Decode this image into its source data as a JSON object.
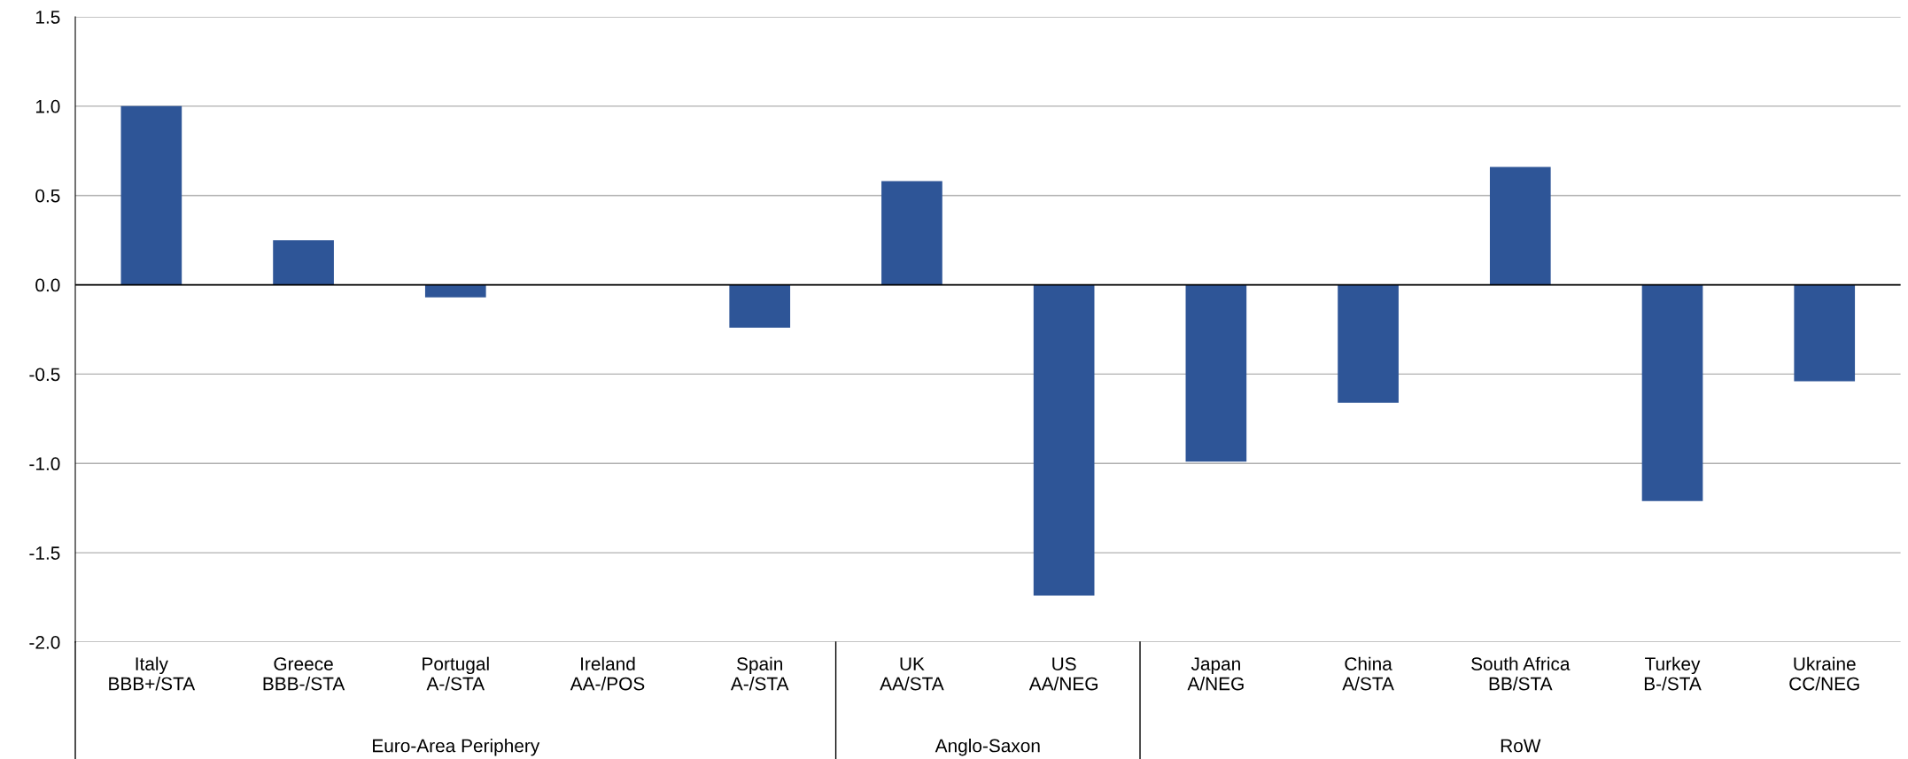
{
  "chart_data": {
    "type": "bar",
    "categories": [
      "Italy\nBBB+/STA",
      "Greece\nBBB-/STA",
      "Portugal\nA-/STA",
      "Ireland\nAA-/POS",
      "Spain\nA-/STA",
      "UK\nAA/STA",
      "US\nAA/NEG",
      "Japan\nA/NEG",
      "China\nA/STA",
      "South Africa\nBB/STA",
      "Turkey\nB-/STA",
      "Ukraine\nCC/NEG"
    ],
    "values": [
      1.0,
      0.25,
      -0.07,
      0.0,
      -0.24,
      0.58,
      -1.74,
      -0.99,
      -0.66,
      0.66,
      -1.21,
      -0.54
    ],
    "color": "#2e5597",
    "ylim": [
      -2.0,
      1.5
    ],
    "yticks": [
      {
        "value": -2,
        "label": "-2.0"
      },
      -1.5,
      {
        "value": -1,
        "label": "-1.0"
      },
      -0.5,
      {
        "value": 0,
        "label": "0.0"
      },
      0.5,
      {
        "value": 1,
        "label": "1.0"
      },
      1.5
    ],
    "grid": "y",
    "annotations": [
      "Euro-Area Periphery",
      "Anglo-Saxon",
      "RoW"
    ]
  }
}
